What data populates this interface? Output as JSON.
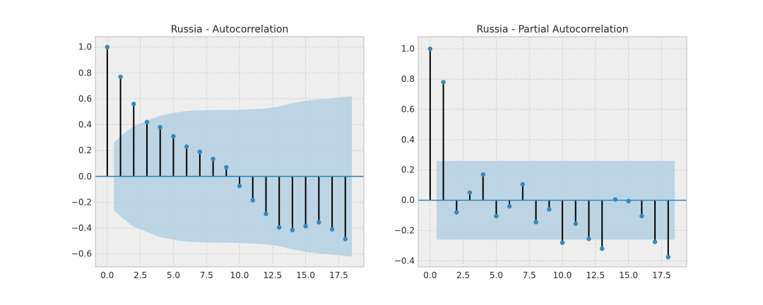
{
  "chart_data": [
    {
      "type": "stem",
      "title": "Russia - Autocorrelation",
      "xlim": [
        -0.9,
        19.4
      ],
      "ylim": [
        -0.7,
        1.08
      ],
      "x_ticks": [
        0,
        2.5,
        5,
        7.5,
        10,
        12.5,
        15,
        17.5
      ],
      "x_tick_labels": [
        "0.0",
        "2.5",
        "5.0",
        "7.5",
        "10.0",
        "12.5",
        "15.0",
        "17.5"
      ],
      "y_ticks": [
        -0.6,
        -0.4,
        -0.2,
        0,
        0.2,
        0.4,
        0.6,
        0.8,
        1.0
      ],
      "y_tick_labels": [
        "−0.6",
        "−0.4",
        "−0.2",
        "0.0",
        "0.2",
        "0.4",
        "0.6",
        "0.8",
        "1.0"
      ],
      "grid": true,
      "lags": [
        0,
        1,
        2,
        3,
        4,
        5,
        6,
        7,
        8,
        9,
        10,
        11,
        12,
        13,
        14,
        15,
        16,
        17,
        18
      ],
      "values": [
        1.0,
        0.77,
        0.56,
        0.42,
        0.38,
        0.31,
        0.23,
        0.19,
        0.135,
        0.07,
        -0.075,
        -0.185,
        -0.29,
        -0.395,
        -0.415,
        -0.385,
        -0.355,
        -0.41,
        -0.485
      ],
      "confidence_band": {
        "x": [
          0.5,
          1,
          2,
          3,
          4,
          5,
          6,
          7,
          8,
          9,
          10,
          11,
          12,
          13,
          14,
          15,
          16,
          17,
          18,
          18.5
        ],
        "upper": [
          0.26,
          0.31,
          0.39,
          0.43,
          0.47,
          0.49,
          0.505,
          0.51,
          0.512,
          0.513,
          0.515,
          0.52,
          0.525,
          0.54,
          0.565,
          0.585,
          0.595,
          0.605,
          0.615,
          0.62
        ],
        "lower": [
          -0.26,
          -0.31,
          -0.39,
          -0.43,
          -0.47,
          -0.49,
          -0.505,
          -0.51,
          -0.512,
          -0.513,
          -0.515,
          -0.52,
          -0.525,
          -0.54,
          -0.565,
          -0.585,
          -0.595,
          -0.605,
          -0.615,
          -0.62
        ]
      }
    },
    {
      "type": "stem",
      "title": "Russia - Partial Autocorrelation",
      "xlim": [
        -0.9,
        19.4
      ],
      "ylim": [
        -0.44,
        1.08
      ],
      "x_ticks": [
        0,
        2.5,
        5,
        7.5,
        10,
        12.5,
        15,
        17.5
      ],
      "x_tick_labels": [
        "0.0",
        "2.5",
        "5.0",
        "7.5",
        "10.0",
        "12.5",
        "15.0",
        "17.5"
      ],
      "y_ticks": [
        -0.4,
        -0.2,
        0,
        0.2,
        0.4,
        0.6,
        0.8,
        1.0
      ],
      "y_tick_labels": [
        "−0.4",
        "−0.2",
        "0.0",
        "0.2",
        "0.4",
        "0.6",
        "0.8",
        "1.0"
      ],
      "grid": true,
      "lags": [
        0,
        1,
        2,
        3,
        4,
        5,
        6,
        7,
        8,
        9,
        10,
        11,
        12,
        13,
        14,
        15,
        16,
        17,
        18
      ],
      "values": [
        1.0,
        0.78,
        -0.08,
        0.05,
        0.17,
        -0.105,
        -0.04,
        0.105,
        -0.145,
        -0.06,
        -0.28,
        -0.155,
        -0.255,
        -0.32,
        0.005,
        -0.005,
        -0.105,
        -0.275,
        -0.375
      ],
      "confidence_band": {
        "x": [
          0.5,
          18.5
        ],
        "upper": [
          0.26,
          0.26
        ],
        "lower": [
          -0.26,
          -0.26
        ]
      }
    }
  ],
  "colors": {
    "axes_background": "#eeeeee",
    "grid": "#c7c7c7",
    "stem": "#000000",
    "marker": "#348abd",
    "baseline": "#348abd",
    "band": "#b3cfe2",
    "frame": "#bcbcbc"
  }
}
